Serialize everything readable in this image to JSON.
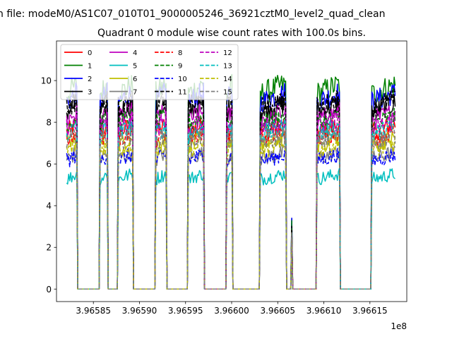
{
  "chart_data": {
    "type": "line",
    "suptitle": "n file: modeM0/AS1C07_010T01_9000005246_36921cztM0_level2_quad_clean",
    "title": "Quadrant 0 module wise count rates with 100.0s bins.",
    "xlabel": "",
    "ylabel": "",
    "x_offset_label": "1e8",
    "xlim": [
      3.96581,
      3.96619
    ],
    "ylim": [
      -0.6,
      11.9
    ],
    "x_ticks": [
      3.96585,
      3.9659,
      3.96595,
      3.966,
      3.96605,
      3.9661,
      3.96615
    ],
    "x_tick_labels": [
      "3.96585",
      "3.96590",
      "3.96595",
      "3.96600",
      "3.96605",
      "3.96610",
      "3.96615"
    ],
    "y_ticks": [
      0,
      2,
      4,
      6,
      8,
      10
    ],
    "y_tick_labels": [
      "0",
      "2",
      "4",
      "6",
      "8",
      "10"
    ],
    "legend_position": "top-left",
    "segments": [
      {
        "start": 3.965821,
        "end": 3.965833
      },
      {
        "start": 3.965857,
        "end": 3.965866
      },
      {
        "start": 3.965876,
        "end": 3.965893
      },
      {
        "start": 3.965917,
        "end": 3.965929
      },
      {
        "start": 3.965952,
        "end": 3.96597
      },
      {
        "start": 3.965994,
        "end": 3.966001
      },
      {
        "start": 3.966031,
        "end": 3.966059
      },
      {
        "start": 3.966065,
        "end": 3.966066
      },
      {
        "start": 3.966092,
        "end": 3.966117
      },
      {
        "start": 3.966152,
        "end": 3.966178
      }
    ],
    "series": [
      {
        "name": "0",
        "color": "#ff0000",
        "dash": "solid",
        "level": 7.7
      },
      {
        "name": "1",
        "color": "#008000",
        "dash": "solid",
        "level": 9.6
      },
      {
        "name": "2",
        "color": "#0000ff",
        "dash": "solid",
        "level": 9.2
      },
      {
        "name": "3",
        "color": "#000000",
        "dash": "solid",
        "level": 8.7
      },
      {
        "name": "4",
        "color": "#bf00bf",
        "dash": "solid",
        "level": 8.3
      },
      {
        "name": "5",
        "color": "#00bfbf",
        "dash": "solid",
        "level": 5.4
      },
      {
        "name": "6",
        "color": "#bfbf00",
        "dash": "solid",
        "level": 7.1
      },
      {
        "name": "7",
        "color": "#808080",
        "dash": "solid",
        "level": 6.4
      },
      {
        "name": "8",
        "color": "#ff0000",
        "dash": "dashed",
        "level": 7.4
      },
      {
        "name": "9",
        "color": "#008000",
        "dash": "dashed",
        "level": 8.1
      },
      {
        "name": "10",
        "color": "#0000ff",
        "dash": "dashed",
        "level": 6.3
      },
      {
        "name": "11",
        "color": "#000000",
        "dash": "dashed",
        "level": 8.9
      },
      {
        "name": "12",
        "color": "#bf00bf",
        "dash": "dashed",
        "level": 7.9
      },
      {
        "name": "13",
        "color": "#00bfbf",
        "dash": "dashed",
        "level": 7.6
      },
      {
        "name": "14",
        "color": "#bfbf00",
        "dash": "dashed",
        "level": 6.8
      },
      {
        "name": "15",
        "color": "#808080",
        "dash": "dashed",
        "level": 7.2
      }
    ]
  }
}
